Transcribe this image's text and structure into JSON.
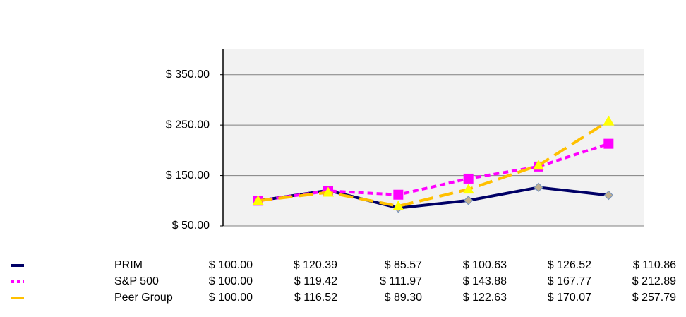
{
  "chart_data": {
    "type": "line",
    "categories": [
      null,
      null,
      null,
      null,
      null,
      null
    ],
    "ylim": [
      50,
      400
    ],
    "yticks": [
      {
        "value": 50,
        "label": "$ 50.00"
      },
      {
        "value": 150,
        "label": "$ 150.00"
      },
      {
        "value": 250,
        "label": "$ 250.00"
      },
      {
        "value": 350,
        "label": "$ 350.00"
      }
    ],
    "grid": true,
    "series": [
      {
        "name": "PRIM",
        "color": "#000066",
        "marker": "diamond",
        "marker_color": "#c0b090",
        "dash": "solid",
        "values": [
          100.0,
          120.39,
          85.57,
          100.63,
          126.52,
          110.86
        ],
        "value_labels": [
          "$ 100.00",
          "$ 120.39",
          "$ 85.57",
          "$ 100.63",
          "$ 126.52",
          "$ 110.86"
        ]
      },
      {
        "name": "S&P 500",
        "color": "#ff00ff",
        "marker": "square",
        "marker_color": "#ff00ff",
        "dash": "short",
        "values": [
          100.0,
          119.42,
          111.97,
          143.88,
          167.77,
          212.89
        ],
        "value_labels": [
          "$ 100.00",
          "$ 119.42",
          "$ 111.97",
          "$ 143.88",
          "$ 167.77",
          "$ 212.89"
        ]
      },
      {
        "name": "Peer Group",
        "color": "#ffc000",
        "marker": "triangle",
        "marker_color": "#ffff00",
        "dash": "long",
        "values": [
          100.0,
          116.52,
          89.3,
          122.63,
          170.07,
          257.79
        ],
        "value_labels": [
          "$ 100.00",
          "$ 116.52",
          "$ 89.30",
          "$ 122.63",
          "$ 170.07",
          "$ 257.79"
        ]
      }
    ]
  }
}
